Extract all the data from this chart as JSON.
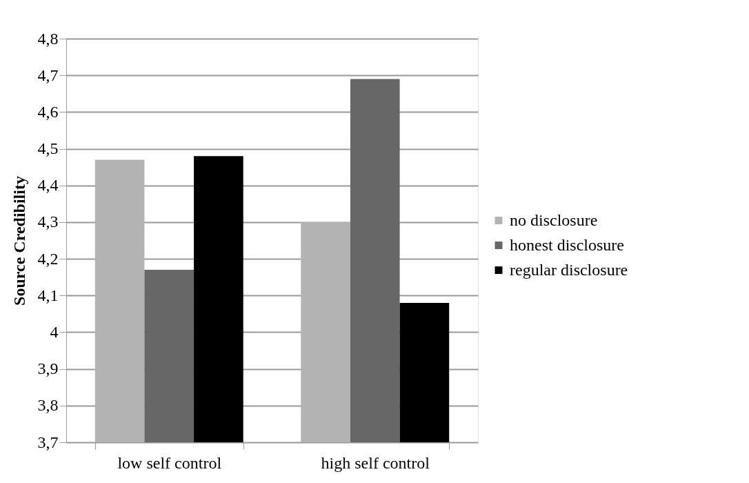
{
  "chart_data": {
    "type": "bar",
    "ylabel": "Source Credibility",
    "categories": [
      "low self control",
      "high self control"
    ],
    "series": [
      {
        "name": "no disclosure",
        "color": "#b3b3b3",
        "values": [
          4.47,
          4.3
        ]
      },
      {
        "name": "honest disclosure",
        "color": "#676767",
        "values": [
          4.17,
          4.69
        ]
      },
      {
        "name": "regular disclosure",
        "color": "#000000",
        "values": [
          4.48,
          4.08
        ]
      }
    ],
    "ylim": [
      3.7,
      4.8
    ],
    "yticks": [
      {
        "value": 3.7,
        "label": "3,7"
      },
      {
        "value": 3.8,
        "label": "3,8"
      },
      {
        "value": 3.9,
        "label": "3,9"
      },
      4,
      {
        "value": 4.1,
        "label": "4,1"
      },
      {
        "value": 4.2,
        "label": "4,2"
      },
      {
        "value": 4.3,
        "label": "4,3"
      },
      {
        "value": 4.4,
        "label": "4,4"
      },
      {
        "value": 4.5,
        "label": "4,5"
      },
      {
        "value": 4.6,
        "label": "4,6"
      },
      {
        "value": 4.7,
        "label": "4,7"
      },
      {
        "value": 4.8,
        "label": "4,8"
      }
    ],
    "grid": "y",
    "legend": "right"
  }
}
